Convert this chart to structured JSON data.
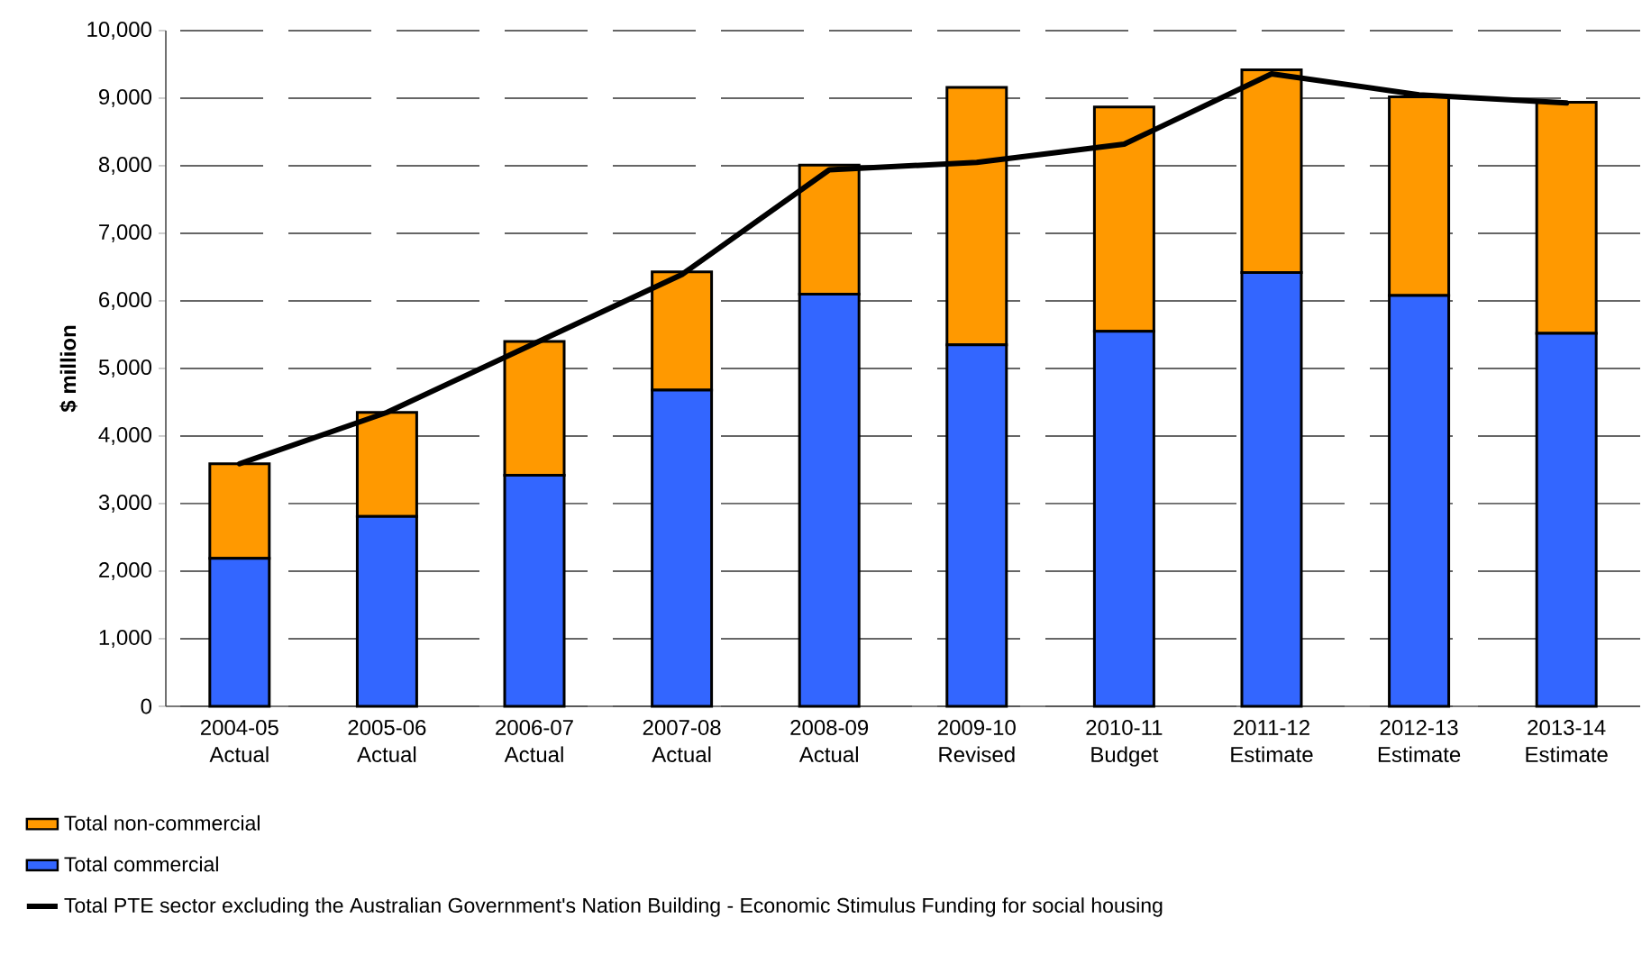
{
  "chart_data": {
    "type": "bar",
    "stacked": true,
    "ylabel": "$ million",
    "categories": [
      "2004-05 Actual",
      "2005-06 Actual",
      "2006-07 Actual",
      "2007-08 Actual",
      "2008-09 Actual",
      "2009-10 Revised",
      "2010-11 Budget",
      "2011-12 Estimate",
      "2012-13 Estimate",
      "2013-14 Estimate"
    ],
    "series": [
      {
        "name": "Total commercial",
        "color": "#3366ff",
        "values": [
          2190,
          2810,
          3420,
          4680,
          6100,
          5350,
          5550,
          6420,
          6080,
          5520
        ]
      },
      {
        "name": "Total non-commercial",
        "color": "#ff9900",
        "values": [
          1400,
          1540,
          1980,
          1750,
          1910,
          3810,
          3320,
          3000,
          2940,
          3420
        ]
      },
      {
        "name": "Total PTE sector excluding the Australian Government's Nation Building - Economic Stimulus Funding for social housing",
        "type": "line",
        "color": "#000000",
        "values": [
          3590,
          4350,
          5370,
          6390,
          7940,
          8050,
          8320,
          9360,
          9050,
          8930
        ]
      }
    ],
    "ylim": [
      0,
      10000
    ],
    "yticks": [
      0,
      {
        "value": 1000,
        "label": "1,000"
      },
      {
        "value": 2000,
        "label": "2,000"
      },
      {
        "value": 3000,
        "label": "3,000"
      },
      {
        "value": 4000,
        "label": "4,000"
      },
      {
        "value": 5000,
        "label": "5,000"
      },
      {
        "value": 6000,
        "label": "6,000"
      },
      {
        "value": 7000,
        "label": "7,000"
      },
      {
        "value": 8000,
        "label": "8,000"
      },
      {
        "value": 9000,
        "label": "9,000"
      },
      {
        "value": 10000,
        "label": "10,000"
      }
    ],
    "grid": "y",
    "legend": "bottom",
    "marker": "none",
    "line_style": "solid"
  }
}
